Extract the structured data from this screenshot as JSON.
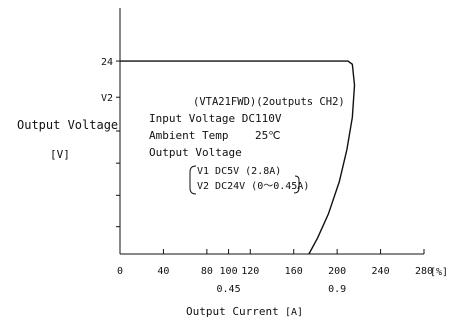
{
  "chart_data": {
    "type": "line",
    "ylabel": "Output Voltage",
    "ylabel_unit": "[V]",
    "xlabel": "Output Current",
    "xlabel_unit": "[A]",
    "x_percent_unit": "[%]",
    "x_percent_ticks": [
      "0",
      "40",
      "80",
      "100",
      "120",
      "160",
      "200",
      "240",
      "280"
    ],
    "x_percent_values": [
      0,
      40,
      80,
      100,
      120,
      160,
      200,
      240,
      280
    ],
    "x_current_ticks": [
      "0.45",
      "0.9"
    ],
    "x_current_at_percent": [
      100,
      200
    ],
    "y_tick_labels": [
      "24",
      "V2"
    ],
    "y_tick_values": [
      24,
      19.5
    ],
    "y_minor_ticks": [
      15.3,
      11.3,
      7.3,
      3.4
    ],
    "xlim": [
      0,
      280
    ],
    "ylim": [
      0,
      30.6
    ],
    "grid": false,
    "series": [
      {
        "x": [
          0,
          100,
          200,
          210,
          214,
          216,
          214,
          209,
          202,
          192,
          182,
          174
        ],
        "y": [
          24,
          24,
          24,
          24,
          23.6,
          21,
          17,
          13,
          9,
          5,
          2,
          0
        ]
      }
    ],
    "annotation": {
      "model": "(VTA21FWD)(2outputs CH2)",
      "input_voltage": "Input Voltage DC110V",
      "ambient_temp": "Ambient Temp    25℃",
      "output_voltage_title": "Output Voltage",
      "v1": "V1 DC5V (2.8A)",
      "v2": "V2 DC24V (0〜0.45A)"
    },
    "colors": {
      "line": "#111111",
      "axis": "#111111",
      "text": "#111111"
    }
  }
}
